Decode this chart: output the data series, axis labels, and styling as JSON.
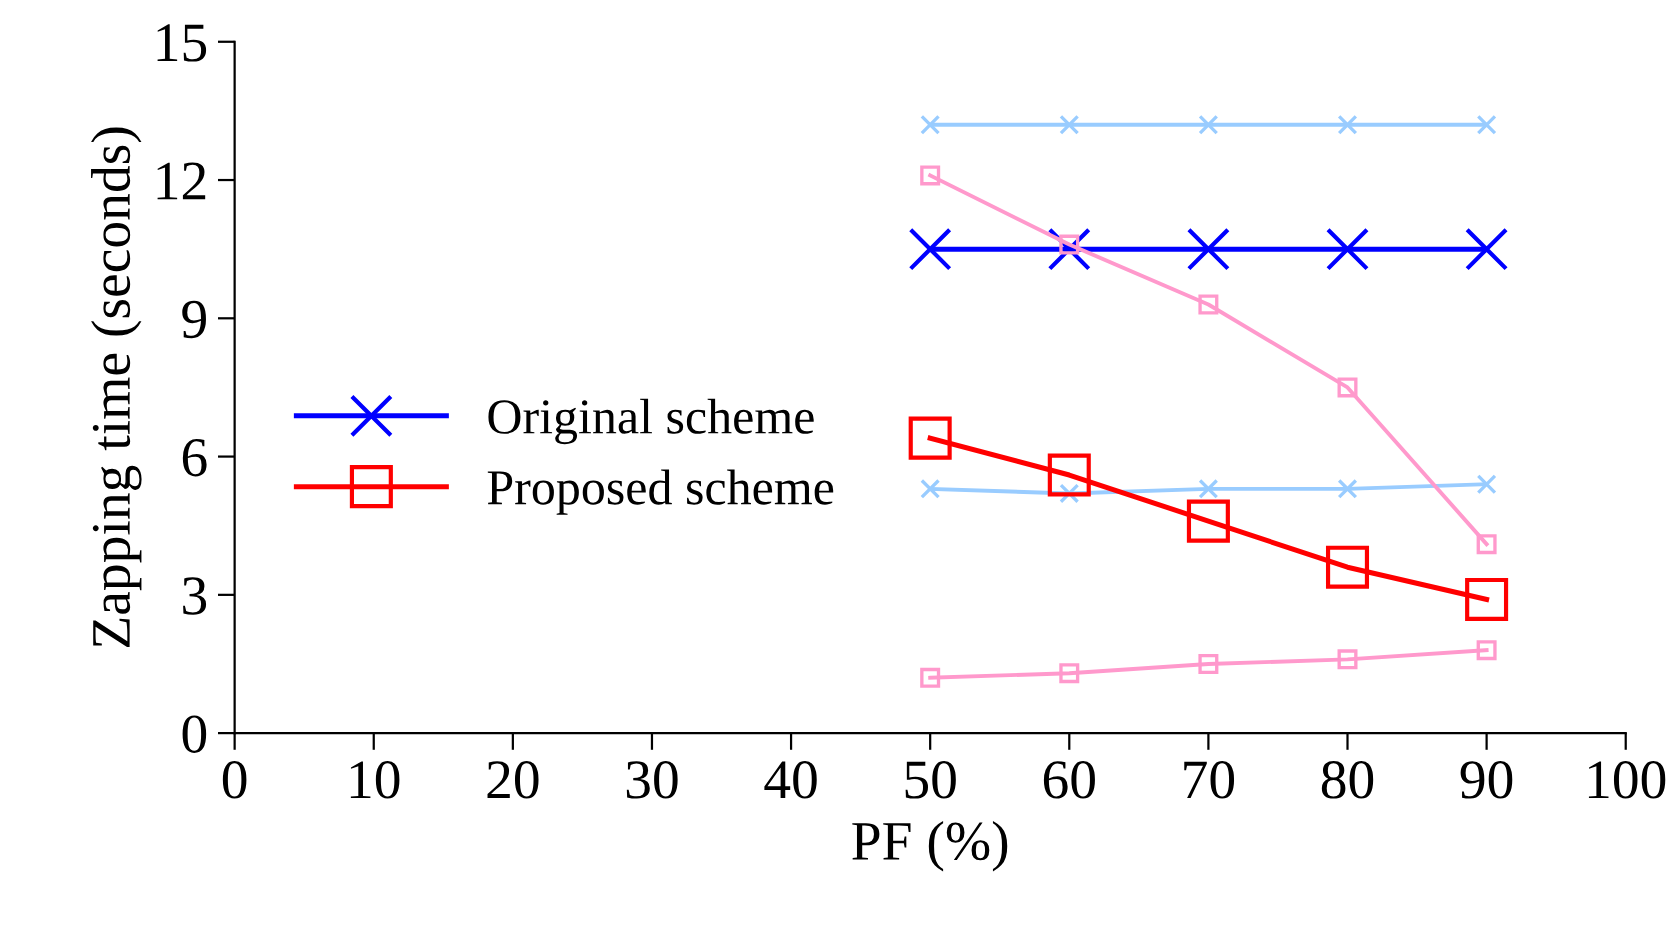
{
  "chart_data": {
    "type": "line",
    "xlabel": "PF (%)",
    "ylabel": "Zapping time (seconds)",
    "x": [
      50,
      60,
      70,
      80,
      90
    ],
    "xlim": [
      0,
      100
    ],
    "xticks": [
      0,
      10,
      20,
      30,
      40,
      50,
      60,
      70,
      80,
      90,
      100
    ],
    "ylim": [
      0,
      15
    ],
    "yticks": [
      0,
      3,
      6,
      9,
      12,
      15
    ],
    "grid": false,
    "legend": "left",
    "series": [
      {
        "color": "#99ccff",
        "marker": "cross",
        "values": [
          13.2,
          13.2,
          13.2,
          13.2,
          13.2
        ]
      },
      {
        "name": "Original scheme",
        "color": "#0000ff",
        "marker": "cross",
        "values": [
          10.5,
          10.5,
          10.5,
          10.5,
          10.5
        ]
      },
      {
        "color": "#99ccff",
        "marker": "cross",
        "values": [
          5.3,
          5.2,
          5.3,
          5.3,
          5.4
        ]
      },
      {
        "color": "#ff99cc",
        "marker": "square",
        "values": [
          12.1,
          10.6,
          9.3,
          7.5,
          4.1
        ]
      },
      {
        "name": "Proposed scheme",
        "color": "#ff0000",
        "marker": "square",
        "values": [
          6.4,
          5.6,
          4.6,
          3.6,
          2.9
        ]
      },
      {
        "color": "#ff99cc",
        "marker": "square",
        "values": [
          1.2,
          1.3,
          1.5,
          1.6,
          1.8
        ]
      }
    ]
  }
}
